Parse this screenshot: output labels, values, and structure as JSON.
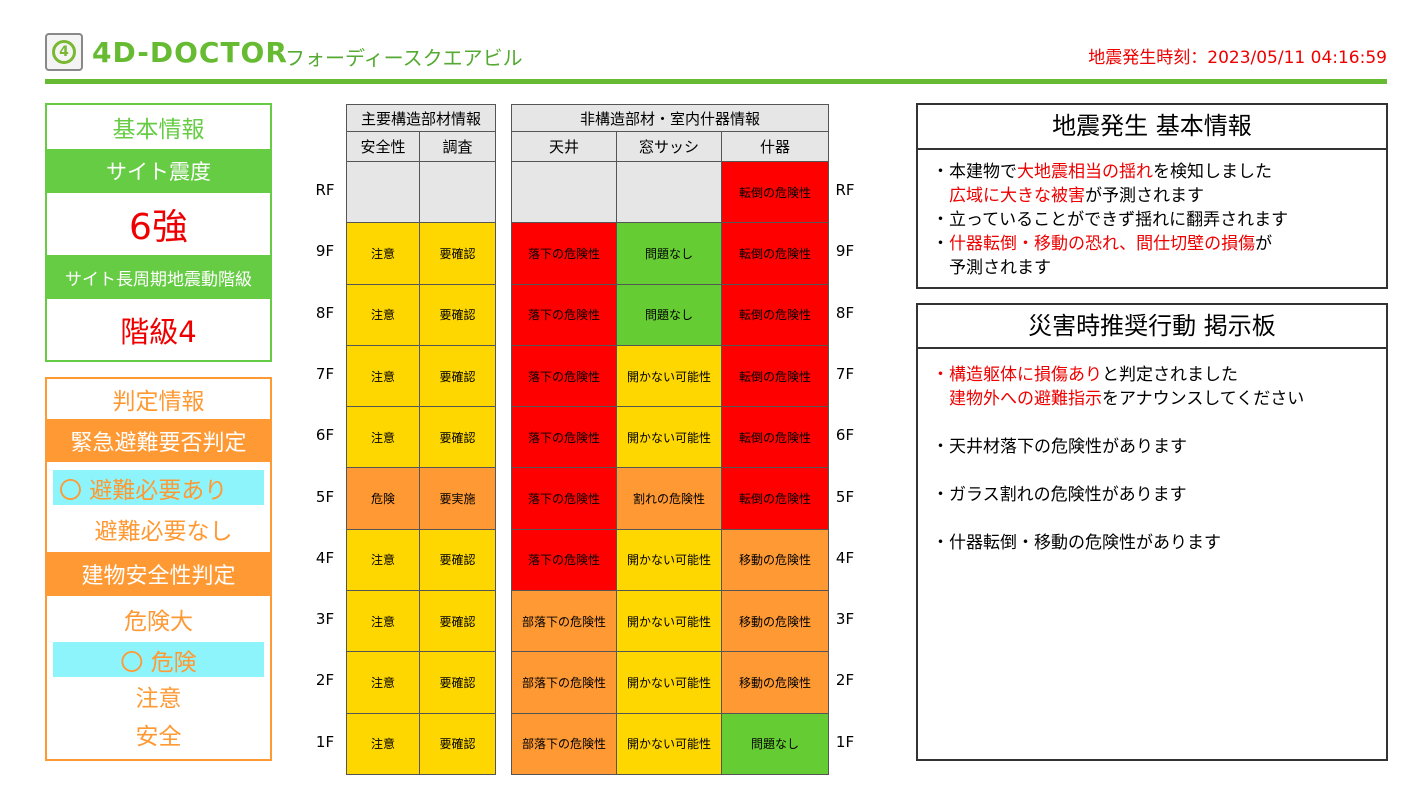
{
  "header": {
    "brand": "4D-DOCTOR",
    "building": "フォーディースクエアビル",
    "quake_time": "地震発生時刻：2023/05/11 04:16:59"
  },
  "basic_panel": {
    "title": "基本情報",
    "site_intensity_label": "サイト震度",
    "site_intensity": "6強",
    "long_period_label": "サイト長周期地震動階級",
    "long_period_class": "階級4"
  },
  "judgement_panel": {
    "title": "判定情報",
    "evac_label": "緊急避難要否判定",
    "evac_options": [
      {
        "label": "〇 避難必要あり",
        "selected": true
      },
      {
        "label": "避難必要なし",
        "selected": false
      }
    ],
    "safety_label": "建物安全性判定",
    "safety_options": [
      {
        "label": "危険大",
        "selected": false
      },
      {
        "label": "〇  危険",
        "selected": true
      },
      {
        "label": "注意",
        "selected": false
      },
      {
        "label": "安全",
        "selected": false
      }
    ]
  },
  "colors": {
    "gray": "#e6e6e6",
    "yellow": "#ffd700",
    "orange": "#ff9933",
    "red": "#ff0000",
    "green": "#66cc33"
  },
  "table": {
    "structural_header": "主要構造部材情報",
    "structural_cols": [
      "安全性",
      "調査"
    ],
    "nonstructural_header": "非構造部材・室内什器情報",
    "nonstructural_cols": [
      "天井",
      "窓サッシ",
      "什器"
    ],
    "rows": [
      {
        "floor": "RF",
        "cells": [
          {
            "t": "",
            "c": "gray"
          },
          {
            "t": "",
            "c": "gray"
          },
          {
            "t": "",
            "c": "gray"
          },
          {
            "t": "",
            "c": "gray"
          },
          {
            "t": "転倒の危険性",
            "c": "red"
          }
        ]
      },
      {
        "floor": "9F",
        "cells": [
          {
            "t": "注意",
            "c": "yellow"
          },
          {
            "t": "要確認",
            "c": "yellow"
          },
          {
            "t": "落下の危険性",
            "c": "red"
          },
          {
            "t": "問題なし",
            "c": "green"
          },
          {
            "t": "転倒の危険性",
            "c": "red"
          }
        ]
      },
      {
        "floor": "8F",
        "cells": [
          {
            "t": "注意",
            "c": "yellow"
          },
          {
            "t": "要確認",
            "c": "yellow"
          },
          {
            "t": "落下の危険性",
            "c": "red"
          },
          {
            "t": "問題なし",
            "c": "green"
          },
          {
            "t": "転倒の危険性",
            "c": "red"
          }
        ]
      },
      {
        "floor": "7F",
        "cells": [
          {
            "t": "注意",
            "c": "yellow"
          },
          {
            "t": "要確認",
            "c": "yellow"
          },
          {
            "t": "落下の危険性",
            "c": "red"
          },
          {
            "t": "開かない可能性",
            "c": "yellow"
          },
          {
            "t": "転倒の危険性",
            "c": "red"
          }
        ]
      },
      {
        "floor": "6F",
        "cells": [
          {
            "t": "注意",
            "c": "yellow"
          },
          {
            "t": "要確認",
            "c": "yellow"
          },
          {
            "t": "落下の危険性",
            "c": "red"
          },
          {
            "t": "開かない可能性",
            "c": "yellow"
          },
          {
            "t": "転倒の危険性",
            "c": "red"
          }
        ]
      },
      {
        "floor": "5F",
        "cells": [
          {
            "t": "危険",
            "c": "orange"
          },
          {
            "t": "要実施",
            "c": "orange"
          },
          {
            "t": "落下の危険性",
            "c": "red"
          },
          {
            "t": "割れの危険性",
            "c": "orange"
          },
          {
            "t": "転倒の危険性",
            "c": "red"
          }
        ]
      },
      {
        "floor": "4F",
        "cells": [
          {
            "t": "注意",
            "c": "yellow"
          },
          {
            "t": "要確認",
            "c": "yellow"
          },
          {
            "t": "落下の危険性",
            "c": "red"
          },
          {
            "t": "開かない可能性",
            "c": "yellow"
          },
          {
            "t": "移動の危険性",
            "c": "orange"
          }
        ]
      },
      {
        "floor": "3F",
        "cells": [
          {
            "t": "注意",
            "c": "yellow"
          },
          {
            "t": "要確認",
            "c": "yellow"
          },
          {
            "t": "部落下の危険性",
            "c": "orange"
          },
          {
            "t": "開かない可能性",
            "c": "yellow"
          },
          {
            "t": "移動の危険性",
            "c": "orange"
          }
        ]
      },
      {
        "floor": "2F",
        "cells": [
          {
            "t": "注意",
            "c": "yellow"
          },
          {
            "t": "要確認",
            "c": "yellow"
          },
          {
            "t": "部落下の危険性",
            "c": "orange"
          },
          {
            "t": "開かない可能性",
            "c": "yellow"
          },
          {
            "t": "移動の危険性",
            "c": "orange"
          }
        ]
      },
      {
        "floor": "1F",
        "cells": [
          {
            "t": "注意",
            "c": "yellow"
          },
          {
            "t": "要確認",
            "c": "yellow"
          },
          {
            "t": "部落下の危険性",
            "c": "orange"
          },
          {
            "t": "開かない可能性",
            "c": "yellow"
          },
          {
            "t": "問題なし",
            "c": "green"
          }
        ]
      }
    ]
  },
  "quake_info": {
    "title": "地震発生  基本情報",
    "lines": [
      [
        {
          "t": "・本建物で"
        },
        {
          "t": "大地震相当の揺れ",
          "red": true
        },
        {
          "t": "を検知しました"
        }
      ],
      [
        {
          "t": "　"
        },
        {
          "t": "広域に大きな被害",
          "red": true
        },
        {
          "t": "が予測されます"
        }
      ],
      [
        {
          "t": "・立っていることができず揺れに翻弄されます"
        }
      ],
      [
        {
          "t": "・"
        },
        {
          "t": "什器転倒・移動の恐れ、間仕切壁の損傷",
          "red": true
        },
        {
          "t": "が"
        }
      ],
      [
        {
          "t": "　予測されます"
        }
      ]
    ]
  },
  "bulletin": {
    "title": "災害時推奨行動  掲示板",
    "lines": [
      [
        {
          "t": "・",
          "red": true
        },
        {
          "t": "構造躯体に損傷あり",
          "red": true
        },
        {
          "t": "と判定されました"
        }
      ],
      [
        {
          "t": "　"
        },
        {
          "t": "建物外への避難指示",
          "red": true
        },
        {
          "t": "をアナウンスしてください"
        }
      ],
      [
        {
          "t": " "
        }
      ],
      [
        {
          "t": "・天井材落下の危険性があります"
        }
      ],
      [
        {
          "t": " "
        }
      ],
      [
        {
          "t": "・ガラス割れの危険性があります"
        }
      ],
      [
        {
          "t": " "
        }
      ],
      [
        {
          "t": "・什器転倒・移動の危険性があります"
        }
      ]
    ]
  }
}
